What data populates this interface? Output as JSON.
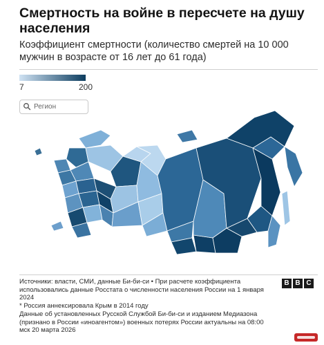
{
  "title": "Смертность на войне в пересчете на душу населения",
  "subtitle": "Коэффициент смертности (количество смертей на 10 000 мужчин в возрасте от 16 лет до 61 года)",
  "legend": {
    "min_label": "7",
    "max_label": "200",
    "color_low": "#cfe2f3",
    "color_high": "#0d3d5f"
  },
  "search": {
    "placeholder": "Регион",
    "icon": "search-icon"
  },
  "map": {
    "type": "choropleth",
    "region": "Russia",
    "metric": "deaths per 10 000 men aged 16–61"
  },
  "footer": {
    "line1": "Источники: власти, СМИ, данные Би-би-си • При расчете коэффициента использовались данные Росстата о численности населения России на 1 января 2024",
    "line2": "* Россия аннексировала Крым в 2014 году",
    "line3": "Данные об установленных Русской Службой Би-би-си и изданием Медиазона (признано в России «иноагентом») военных потерях России актуальны на 08:00 мск 20 марта 2026"
  },
  "brand": {
    "letters": [
      "B",
      "B",
      "C"
    ]
  }
}
